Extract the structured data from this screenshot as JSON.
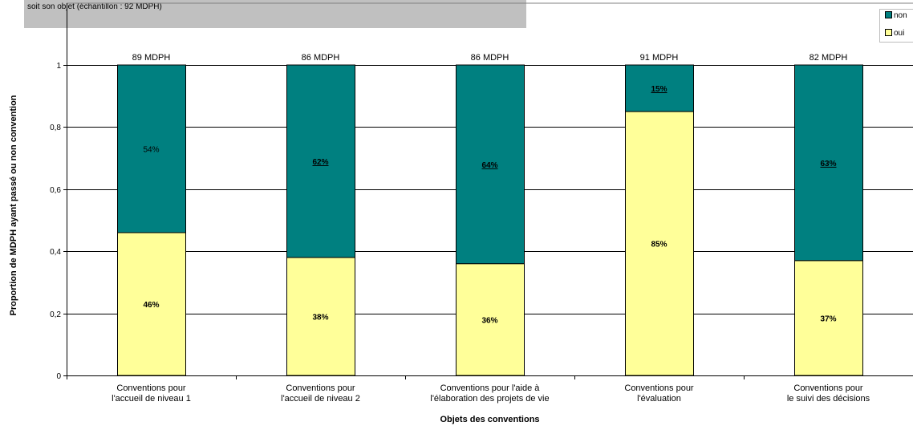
{
  "chart_data": {
    "type": "bar",
    "stacked": true,
    "subtitle": "soit son objet (échantillon :  92 MDPH)",
    "xlabel": "Objets des conventions",
    "ylabel": "Proportion de MDPH ayant passé ou non convention",
    "ylim": [
      0,
      1
    ],
    "yticks": [
      "0",
      "0,2",
      "0,4",
      "0,6",
      "0,8",
      "1"
    ],
    "categories": [
      [
        "Conventions pour",
        "l'accueil de niveau 1"
      ],
      [
        "Conventions pour",
        "l'accueil de niveau 2"
      ],
      [
        "Conventions pour l'aide à",
        "l'élaboration des projets de vie"
      ],
      [
        "Conventions pour",
        "l'évaluation"
      ],
      [
        "Conventions pour",
        "le suivi des décisions"
      ]
    ],
    "totals": [
      "89 MDPH",
      "86 MDPH",
      "86 MDPH",
      "91 MDPH",
      "82 MDPH"
    ],
    "series": [
      {
        "name": "oui",
        "color": "#ffff99",
        "values": [
          0.46,
          0.38,
          0.36,
          0.85,
          0.37
        ],
        "labels": [
          "46%",
          "38%",
          "36%",
          "85%",
          "37%"
        ]
      },
      {
        "name": "non",
        "color": "#008080",
        "values": [
          0.54,
          0.62,
          0.64,
          0.15,
          0.63
        ],
        "labels": [
          "54%",
          "62%",
          "64%",
          "15%",
          "63%"
        ]
      }
    ],
    "legend": [
      "non",
      "oui"
    ],
    "legend_position": "top-right",
    "grid": true
  }
}
